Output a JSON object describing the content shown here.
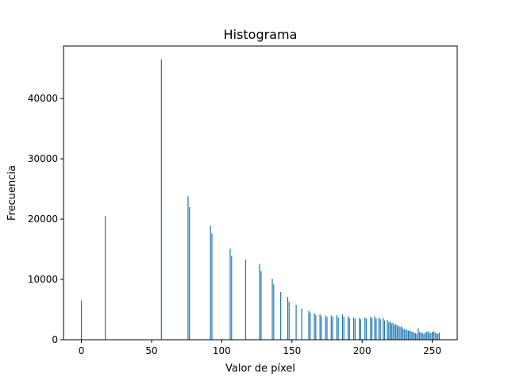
{
  "chart_data": {
    "type": "bar",
    "title": "Histograma",
    "xlabel": "Valor de píxel",
    "ylabel": "Frecuencia",
    "xlim": [
      -12.75,
      267.75
    ],
    "ylim": [
      0,
      48700
    ],
    "xticks": [
      0,
      50,
      100,
      150,
      200,
      250
    ],
    "yticks": [
      0,
      10000,
      20000,
      30000,
      40000
    ],
    "grid": false,
    "bar_color": "#1f77b4",
    "series": [
      {
        "x": [
          0,
          17,
          57,
          76,
          77,
          92,
          93,
          106,
          107,
          117,
          127,
          128,
          136,
          137,
          142,
          147,
          148,
          153,
          157,
          162,
          163,
          166,
          167,
          170,
          171,
          174,
          175,
          178,
          179,
          182,
          183,
          186,
          187,
          190,
          191,
          194,
          195,
          198,
          199,
          202,
          203,
          206,
          207,
          209,
          210,
          212,
          213,
          215,
          216,
          218,
          219,
          220,
          221,
          222,
          223,
          224,
          225,
          226,
          227,
          228,
          229,
          230,
          231,
          232,
          233,
          234,
          235,
          236,
          237,
          238,
          239,
          240,
          241,
          242,
          243,
          244,
          245,
          246,
          247,
          248,
          249,
          250,
          251,
          252,
          253,
          254,
          255
        ],
        "values": [
          6500,
          20500,
          46500,
          23800,
          22000,
          18900,
          17600,
          15100,
          13900,
          13300,
          12600,
          11400,
          10100,
          9200,
          7900,
          7100,
          6300,
          5800,
          5200,
          4800,
          4500,
          4400,
          4100,
          4200,
          3900,
          4000,
          3800,
          4000,
          3800,
          4100,
          3700,
          4200,
          3800,
          3900,
          3600,
          3700,
          3500,
          3600,
          3400,
          3700,
          3500,
          3800,
          3600,
          3900,
          3500,
          3700,
          3400,
          3600,
          3200,
          3300,
          2900,
          3000,
          2700,
          2800,
          2500,
          2600,
          2300,
          2400,
          2100,
          2200,
          1900,
          1800,
          1700,
          1600,
          1500,
          1500,
          1400,
          1300,
          1200,
          1100,
          1000,
          1900,
          1300,
          1200,
          1100,
          1000,
          1200,
          1300,
          1400,
          1200,
          1100,
          1300,
          1400,
          1200,
          1100,
          1000,
          1200
        ]
      }
    ]
  }
}
